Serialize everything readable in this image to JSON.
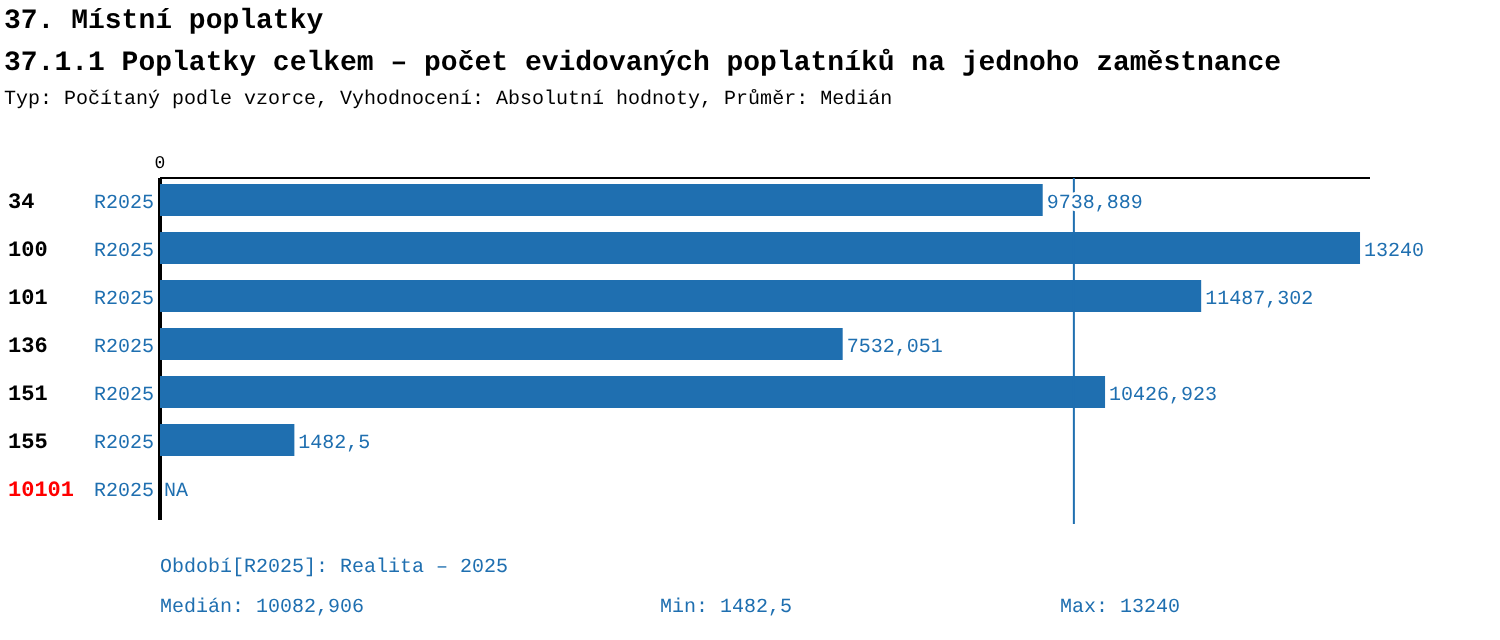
{
  "chart_data": {
    "type": "bar",
    "orientation": "horizontal",
    "title": "37. Místní poplatky",
    "subtitle": "37.1.1 Poplatky celkem – počet evidovaných poplatníků na jednoho zaměstnance",
    "categories": [
      "34",
      "100",
      "101",
      "136",
      "151",
      "155",
      "10101"
    ],
    "series": [
      {
        "name": "R2025",
        "color": "#1f6fb0",
        "values": [
          9738.889,
          13240,
          11487.302,
          7532.051,
          10426.923,
          1482.5,
          null
        ],
        "value_labels": [
          "9738,889",
          "13240",
          "11487,302",
          "7532,051",
          "10426,923",
          "1482,5",
          "NA"
        ]
      }
    ],
    "xlim": [
      0,
      13350
    ],
    "ref_lines": [
      {
        "axis": "x",
        "value": 10082.906,
        "color": "#1f6fb0"
      }
    ],
    "annotations": [
      "Typ: Počítaný podle vzorce, Vyhodnocení: Absolutní hodnoty, Průměr: Medián",
      "0",
      "Období[R2025]: Realita – 2025",
      "Medián: 10082,906",
      "Min: 1482,5",
      "Max: 13240"
    ]
  }
}
